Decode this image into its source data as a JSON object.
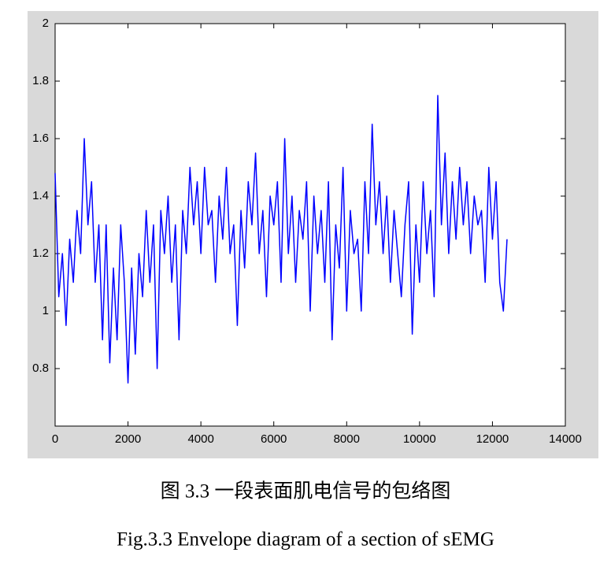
{
  "chart_data": {
    "type": "line",
    "x": [
      0,
      100,
      200,
      300,
      400,
      500,
      600,
      700,
      800,
      900,
      1000,
      1100,
      1200,
      1300,
      1400,
      1500,
      1600,
      1700,
      1800,
      1900,
      2000,
      2100,
      2200,
      2300,
      2400,
      2500,
      2600,
      2700,
      2800,
      2900,
      3000,
      3100,
      3200,
      3300,
      3400,
      3500,
      3600,
      3700,
      3800,
      3900,
      4000,
      4100,
      4200,
      4300,
      4400,
      4500,
      4600,
      4700,
      4800,
      4900,
      5000,
      5100,
      5200,
      5300,
      5400,
      5500,
      5600,
      5700,
      5800,
      5900,
      6000,
      6100,
      6200,
      6300,
      6400,
      6500,
      6600,
      6700,
      6800,
      6900,
      7000,
      7100,
      7200,
      7300,
      7400,
      7500,
      7600,
      7700,
      7800,
      7900,
      8000,
      8100,
      8200,
      8300,
      8400,
      8500,
      8600,
      8700,
      8800,
      8900,
      9000,
      9100,
      9200,
      9300,
      9400,
      9500,
      9600,
      9700,
      9800,
      9900,
      10000,
      10100,
      10200,
      10300,
      10400,
      10500,
      10600,
      10700,
      10800,
      10900,
      11000,
      11100,
      11200,
      11300,
      11400,
      11500,
      11600,
      11700,
      11800,
      11900,
      12000,
      12100,
      12200,
      12300,
      12400
    ],
    "series": [
      {
        "color": "#0000ff",
        "values": [
          1.48,
          1.05,
          1.2,
          0.95,
          1.25,
          1.1,
          1.35,
          1.2,
          1.6,
          1.3,
          1.45,
          1.1,
          1.3,
          0.9,
          1.3,
          0.82,
          1.15,
          0.9,
          1.3,
          1.1,
          0.75,
          1.15,
          0.85,
          1.2,
          1.05,
          1.35,
          1.1,
          1.3,
          0.8,
          1.35,
          1.2,
          1.4,
          1.1,
          1.3,
          0.9,
          1.35,
          1.2,
          1.5,
          1.3,
          1.45,
          1.2,
          1.5,
          1.3,
          1.35,
          1.1,
          1.4,
          1.25,
          1.5,
          1.2,
          1.3,
          0.95,
          1.35,
          1.15,
          1.45,
          1.3,
          1.55,
          1.2,
          1.35,
          1.05,
          1.4,
          1.3,
          1.45,
          1.1,
          1.6,
          1.2,
          1.4,
          1.1,
          1.35,
          1.25,
          1.45,
          1.0,
          1.4,
          1.2,
          1.35,
          1.1,
          1.45,
          0.9,
          1.3,
          1.15,
          1.5,
          1.0,
          1.35,
          1.2,
          1.25,
          1.0,
          1.45,
          1.2,
          1.65,
          1.3,
          1.45,
          1.2,
          1.4,
          1.1,
          1.35,
          1.2,
          1.05,
          1.3,
          1.45,
          0.92,
          1.3,
          1.1,
          1.45,
          1.2,
          1.35,
          1.05,
          1.75,
          1.3,
          1.55,
          1.2,
          1.45,
          1.25,
          1.5,
          1.3,
          1.45,
          1.2,
          1.4,
          1.3,
          1.35,
          1.1,
          1.5,
          1.25,
          1.45,
          1.1,
          1.0,
          1.25
        ]
      }
    ],
    "xlim": [
      0,
      14000
    ],
    "xticks": [
      0,
      2000,
      4000,
      6000,
      8000,
      10000,
      12000,
      14000
    ],
    "ylim": [
      0.6,
      2
    ],
    "yticks": [
      0.8,
      1,
      1.2,
      1.4,
      1.6,
      1.8,
      2
    ],
    "grid": false,
    "caption_cn": "图 3.3  一段表面肌电信号的包络图",
    "caption_en": "Fig.3.3 Envelope diagram of a section of sEMG"
  }
}
